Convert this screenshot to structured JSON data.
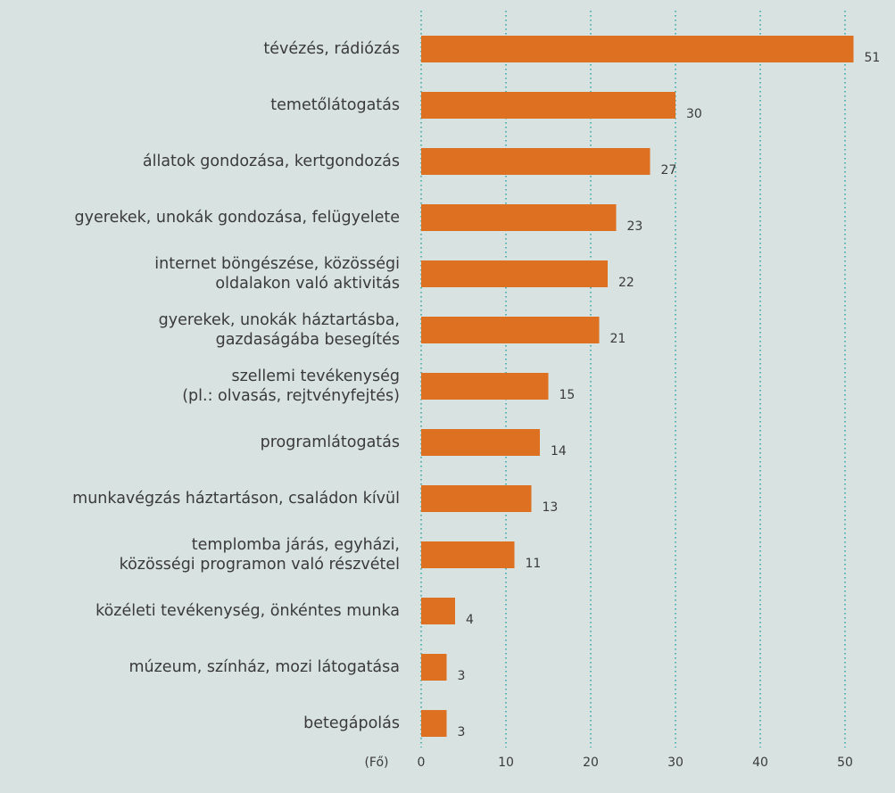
{
  "chart_data": {
    "type": "bar",
    "orientation": "horizontal",
    "categories": [
      "tévézés, rádiózás",
      "temetőlátogatás",
      "állatok gondozása, kertgondozás",
      "gyerekek, unokák gondozása, felügyelete",
      "internet böngészése, közösségi\noldalakon való aktivitás",
      "gyerekek, unokák háztartásba,\ngazdaságába besegítés",
      "szellemi tevékenység\n(pl.: olvasás, rejtvényfejtés)",
      "programlátogatás",
      "munkavégzás háztartáson, családon kívül",
      "templomba járás, egyházi,\nközösségi programon való részvétel",
      "közéleti tevékenység, önkéntes munka",
      "múzeum, színház, mozi látogatása",
      "betegápolás"
    ],
    "values": [
      51,
      30,
      27,
      23,
      22,
      21,
      15,
      14,
      13,
      11,
      4,
      3,
      3
    ],
    "color": "#de7021",
    "xlabel": "(Fő)",
    "xlim": [
      0,
      55
    ],
    "xticks": [
      0,
      10,
      20,
      30,
      40,
      50
    ],
    "grid": true
  }
}
